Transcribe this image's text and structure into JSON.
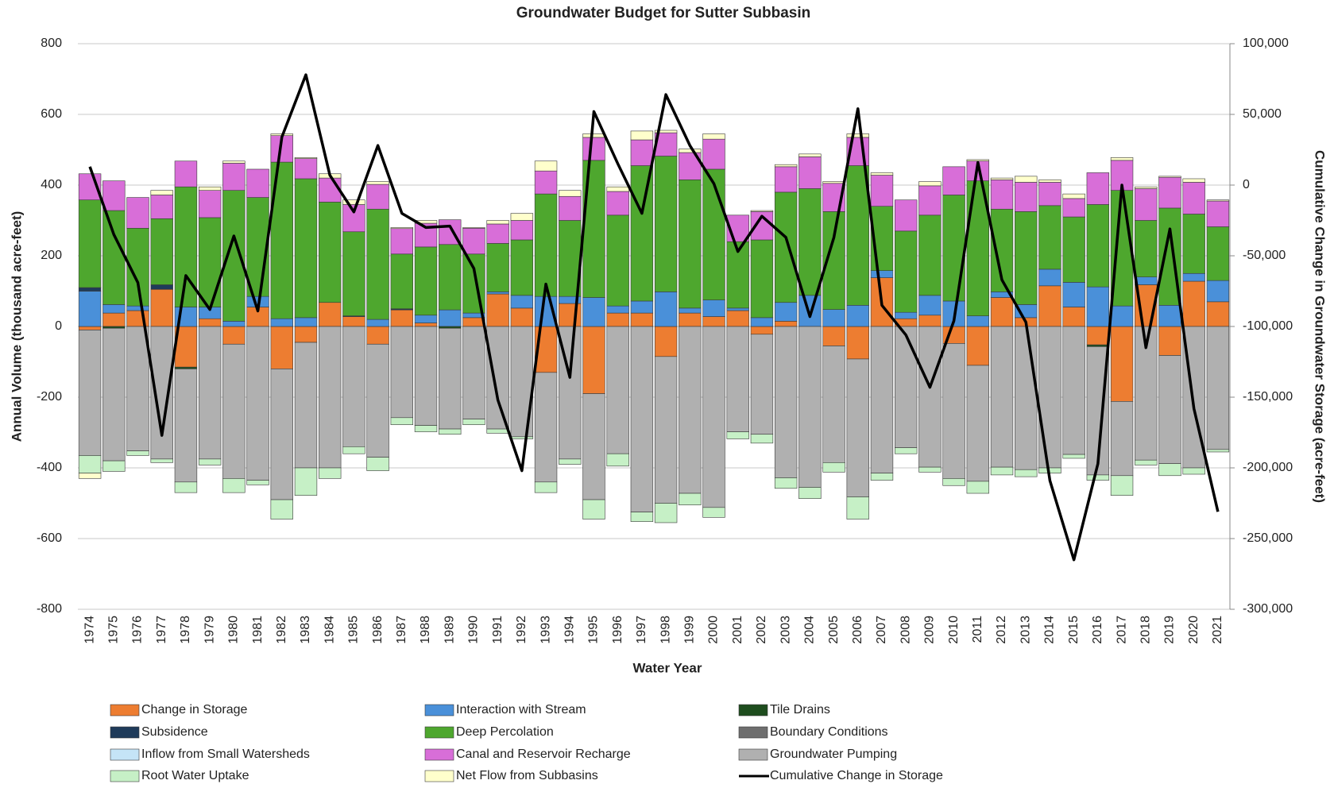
{
  "chart_data": {
    "type": "bar",
    "stacked": true,
    "title": "Groundwater Budget for Sutter Subbasin",
    "x_label": "Water Year",
    "y_label": "Annual Volume (thousand acre-feet)",
    "y2_label": "Cumulative Change in Groundwater Storage (acre-feet)",
    "categories": [
      "1974",
      "1975",
      "1976",
      "1977",
      "1978",
      "1979",
      "1980",
      "1981",
      "1982",
      "1983",
      "1984",
      "1985",
      "1986",
      "1987",
      "1988",
      "1989",
      "1990",
      "1991",
      "1992",
      "1993",
      "1994",
      "1995",
      "1996",
      "1997",
      "1998",
      "1999",
      "2000",
      "2001",
      "2002",
      "2003",
      "2004",
      "2005",
      "2006",
      "2007",
      "2008",
      "2009",
      "2010",
      "2011",
      "2012",
      "2013",
      "2014",
      "2015",
      "2016",
      "2017",
      "2018",
      "2019",
      "2020",
      "2021"
    ],
    "ylim": [
      -800,
      800
    ],
    "yticks": [
      -800,
      -600,
      -400,
      -200,
      0,
      200,
      400,
      600,
      800
    ],
    "y2lim": [
      -300000,
      100000
    ],
    "y2ticks": [
      {
        "value": -300000,
        "label": "-300,000"
      },
      {
        "value": -250000,
        "label": "-250,000"
      },
      {
        "value": -200000,
        "label": "-200,000"
      },
      {
        "value": -150000,
        "label": "-150,000"
      },
      {
        "value": -100000,
        "label": "-100,000"
      },
      {
        "value": -50000,
        "label": "-50,000"
      },
      0,
      {
        "value": 50000,
        "label": "50,000"
      },
      {
        "value": 100000,
        "label": "100,000"
      }
    ],
    "grid": true,
    "legend": "bottom",
    "series": [
      {
        "name": "Change in Storage",
        "color": "#ed7d31",
        "values": [
          -10,
          38,
          45,
          105,
          -115,
          22,
          -50,
          55,
          -120,
          -45,
          68,
          28,
          -50,
          47,
          10,
          0,
          25,
          92,
          52,
          -130,
          65,
          -190,
          38,
          38,
          -85,
          38,
          28,
          45,
          -22,
          15,
          0,
          -55,
          -92,
          138,
          22,
          32,
          -48,
          -110,
          82,
          25,
          115,
          55,
          -52,
          -212,
          118,
          -82,
          128,
          70
        ]
      },
      {
        "name": "Interaction with Stream",
        "color": "#4a90d9",
        "values": [
          100,
          24,
          13,
          0,
          55,
          33,
          15,
          30,
          22,
          25,
          0,
          0,
          20,
          0,
          22,
          47,
          13,
          6,
          36,
          85,
          20,
          82,
          20,
          34,
          98,
          14,
          47,
          7,
          25,
          53,
          88,
          48,
          60,
          20,
          18,
          56,
          72,
          30,
          16,
          37,
          47,
          70,
          112,
          58,
          22,
          60,
          22,
          60
        ]
      },
      {
        "name": "Tile Drains",
        "color": "#1e4d1e",
        "values": [
          0,
          -5,
          0,
          0,
          -5,
          0,
          0,
          0,
          0,
          0,
          0,
          0,
          0,
          0,
          0,
          -5,
          0,
          0,
          0,
          0,
          0,
          0,
          0,
          0,
          0,
          0,
          0,
          0,
          0,
          0,
          0,
          0,
          0,
          0,
          0,
          0,
          0,
          0,
          0,
          0,
          0,
          0,
          -5,
          0,
          0,
          0,
          0,
          0
        ]
      },
      {
        "name": "Subsidence",
        "color": "#1f3b5a",
        "values": [
          10,
          0,
          0,
          13,
          0,
          0,
          0,
          0,
          0,
          0,
          0,
          2,
          0,
          3,
          0,
          0,
          0,
          0,
          0,
          0,
          0,
          0,
          0,
          0,
          0,
          0,
          0,
          0,
          0,
          0,
          0,
          0,
          0,
          0,
          0,
          0,
          0,
          0,
          0,
          0,
          0,
          0,
          0,
          0,
          0,
          0,
          0,
          0
        ]
      },
      {
        "name": "Deep Percolation",
        "color": "#4ea72e",
        "values": [
          248,
          266,
          220,
          187,
          340,
          253,
          370,
          280,
          443,
          393,
          284,
          238,
          312,
          155,
          193,
          185,
          167,
          137,
          157,
          290,
          215,
          388,
          257,
          383,
          384,
          363,
          370,
          188,
          220,
          312,
          302,
          277,
          395,
          182,
          230,
          227,
          300,
          382,
          234,
          263,
          180,
          185,
          233,
          327,
          160,
          275,
          168,
          152
        ]
      },
      {
        "name": "Boundary Conditions",
        "color": "#6e6e6e",
        "values": [
          0,
          0,
          0,
          0,
          0,
          0,
          0,
          0,
          0,
          0,
          0,
          0,
          0,
          0,
          0,
          0,
          0,
          0,
          0,
          0,
          0,
          0,
          0,
          0,
          0,
          0,
          0,
          0,
          0,
          0,
          0,
          0,
          0,
          0,
          0,
          0,
          0,
          0,
          0,
          0,
          0,
          0,
          0,
          0,
          0,
          0,
          0,
          0
        ]
      },
      {
        "name": "Inflow from Small Watersheds",
        "color": "#c5e4f7",
        "values": [
          0,
          0,
          0,
          0,
          0,
          0,
          0,
          0,
          0,
          0,
          0,
          0,
          0,
          0,
          0,
          0,
          0,
          0,
          0,
          0,
          0,
          0,
          0,
          0,
          0,
          0,
          0,
          0,
          0,
          0,
          0,
          0,
          0,
          0,
          0,
          0,
          0,
          0,
          0,
          0,
          0,
          0,
          0,
          0,
          0,
          0,
          0,
          0
        ]
      },
      {
        "name": "Canal and Reservoir Recharge",
        "color": "#d86ed8",
        "values": [
          74,
          84,
          87,
          67,
          73,
          77,
          77,
          80,
          75,
          57,
          68,
          77,
          70,
          72,
          67,
          70,
          73,
          55,
          55,
          65,
          68,
          65,
          67,
          73,
          66,
          77,
          85,
          75,
          80,
          72,
          90,
          80,
          80,
          88,
          88,
          83,
          80,
          56,
          83,
          83,
          66,
          52,
          90,
          85,
          90,
          87,
          90,
          73
        ]
      },
      {
        "name": "Groundwater Pumping",
        "color": "#b0b0b0",
        "values": [
          -355,
          -375,
          -352,
          -375,
          -320,
          -375,
          -380,
          -435,
          -370,
          -355,
          -400,
          -340,
          -320,
          -258,
          -280,
          -285,
          -262,
          -290,
          -312,
          -310,
          -375,
          -300,
          -360,
          -525,
          -415,
          -472,
          -512,
          -298,
          -283,
          -428,
          -455,
          -330,
          -390,
          -415,
          -343,
          -398,
          -382,
          -328,
          -398,
          -405,
          -400,
          -362,
          -363,
          -210,
          -378,
          -306,
          -400,
          -348
        ]
      },
      {
        "name": "Root Water Uptake",
        "color": "#c6f0c6",
        "values": [
          -50,
          -30,
          -13,
          -10,
          -30,
          -17,
          -40,
          -13,
          -55,
          -78,
          -30,
          -20,
          -38,
          -20,
          -18,
          -15,
          -16,
          -12,
          -6,
          -30,
          -15,
          -55,
          -35,
          -27,
          -55,
          -33,
          -28,
          -20,
          -25,
          -30,
          -32,
          -27,
          -63,
          -20,
          -17,
          -14,
          -20,
          -34,
          -22,
          -20,
          -15,
          -11,
          -15,
          -56,
          -14,
          -34,
          -18,
          -7
        ]
      },
      {
        "name": "Net Flow from Subbasins",
        "color": "#ffffcc",
        "values": [
          -15,
          0,
          0,
          13,
          0,
          10,
          6,
          0,
          5,
          3,
          12,
          13,
          8,
          3,
          8,
          0,
          2,
          10,
          20,
          28,
          17,
          10,
          13,
          25,
          7,
          10,
          15,
          0,
          3,
          6,
          8,
          5,
          10,
          7,
          0,
          12,
          0,
          4,
          5,
          17,
          7,
          13,
          0,
          8,
          5,
          3,
          10,
          3
        ]
      },
      {
        "name": "Cumulative Change in Storage",
        "color": "#000000",
        "type": "line",
        "axis": "y2",
        "values": [
          13000,
          -35000,
          -69000,
          -177000,
          -64000,
          -88000,
          -36000,
          -89000,
          34000,
          78000,
          7000,
          -19000,
          28000,
          -20000,
          -30000,
          -29000,
          -59000,
          -152000,
          -202000,
          -70000,
          -136000,
          52000,
          15000,
          -20000,
          64000,
          28000,
          1000,
          -47000,
          -22000,
          -37000,
          -93000,
          -37000,
          54000,
          -85000,
          -106000,
          -143000,
          -96000,
          16000,
          -67000,
          -97000,
          -209000,
          -265000,
          -197000,
          0,
          -115000,
          -31000,
          -158000,
          -231000
        ]
      }
    ]
  }
}
